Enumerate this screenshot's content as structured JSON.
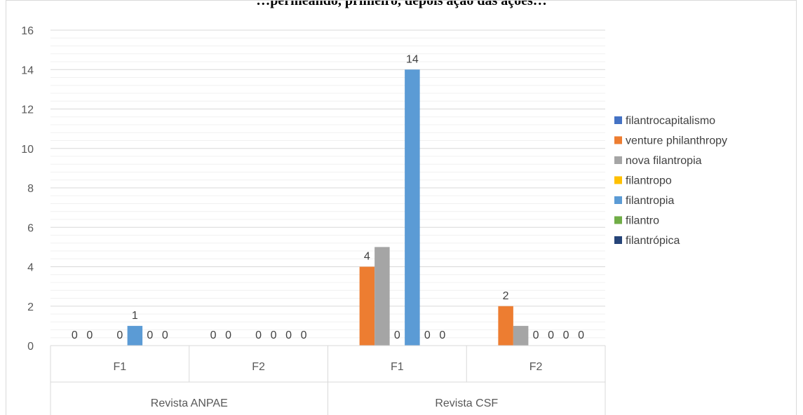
{
  "chart_data": {
    "type": "bar",
    "title": "…permeando, primeiro, depois ação das ações…",
    "groups": [
      {
        "label": "Revista ANPAE",
        "subcategories": [
          "F1",
          "F2"
        ]
      },
      {
        "label": "Revista CSF",
        "subcategories": [
          "F1",
          "F2"
        ]
      }
    ],
    "categories": [
      "F1",
      "F2",
      "F1",
      "F2"
    ],
    "series": [
      {
        "name": "filantrocapitalismo",
        "color": "#4472C4",
        "values": [
          0,
          0,
          0,
          0
        ]
      },
      {
        "name": "venture philanthropy",
        "color": "#ED7D31",
        "values": [
          0,
          0,
          4,
          2
        ]
      },
      {
        "name": "nova filantropia",
        "color": "#A5A5A5",
        "values": [
          0,
          0,
          5,
          1
        ]
      },
      {
        "name": "filantropo",
        "color": "#FFC000",
        "values": [
          0,
          0,
          0,
          0
        ]
      },
      {
        "name": "filantropia",
        "color": "#5B9BD5",
        "values": [
          1,
          0,
          14,
          0
        ]
      },
      {
        "name": "filantro",
        "color": "#70AD47",
        "values": [
          0,
          0,
          0,
          0
        ]
      },
      {
        "name": "filantrópica",
        "color": "#264478",
        "values": [
          0,
          0,
          0,
          0
        ]
      }
    ],
    "data_labels": [
      [
        "0",
        "0",
        "",
        "0",
        "1",
        "0",
        "0"
      ],
      [
        "0",
        "0",
        "",
        "0",
        "0",
        "0",
        "0"
      ],
      [
        "",
        "4",
        "",
        "0",
        "14",
        "0",
        "0"
      ],
      [
        "",
        "2",
        "",
        "0",
        "0",
        "0",
        "0"
      ]
    ],
    "ylim": [
      0,
      16
    ],
    "yticks": [
      0,
      2,
      4,
      6,
      8,
      10,
      12,
      14,
      16
    ],
    "grid": true,
    "legend_position": "right"
  }
}
